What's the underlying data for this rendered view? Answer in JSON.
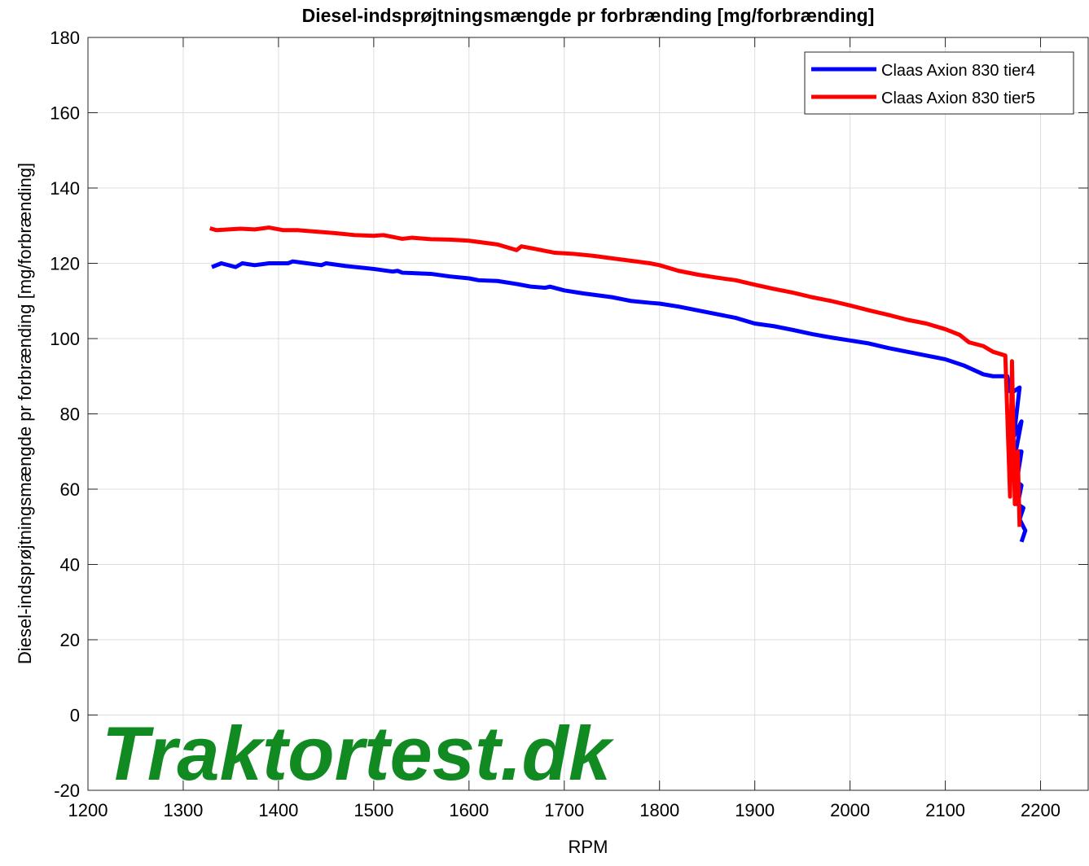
{
  "chart_data": {
    "type": "line",
    "title": "Diesel-indsprøjtningsmængde pr forbrænding [mg/forbrænding]",
    "xlabel": "RPM",
    "ylabel": "Diesel-indsprøjtningsmængde pr forbrænding [mg/forbrænding]",
    "watermark": "Traktortest.dk",
    "xlim": [
      1200,
      2250
    ],
    "ylim": [
      -20,
      180
    ],
    "xticks": [
      1200,
      1300,
      1400,
      1500,
      1600,
      1700,
      1800,
      1900,
      2000,
      2100,
      2200
    ],
    "yticks": [
      -20,
      0,
      20,
      40,
      60,
      80,
      100,
      120,
      140,
      160,
      180
    ],
    "grid": true,
    "legend": "upper right",
    "series": [
      {
        "name": "Claas Axion 830 tier4",
        "color": "#0000ff",
        "x": [
          1330,
          1340,
          1355,
          1362,
          1375,
          1390,
          1410,
          1415,
          1430,
          1445,
          1450,
          1470,
          1500,
          1520,
          1525,
          1530,
          1560,
          1580,
          1600,
          1610,
          1630,
          1650,
          1665,
          1680,
          1685,
          1700,
          1720,
          1750,
          1770,
          1790,
          1800,
          1820,
          1840,
          1860,
          1880,
          1900,
          1920,
          1940,
          1960,
          1980,
          2000,
          2020,
          2040,
          2060,
          2080,
          2100,
          2120,
          2140,
          2150,
          2160,
          2165,
          2168,
          2172,
          2178,
          2172,
          2180,
          2174,
          2180,
          2175,
          2180,
          2176,
          2182,
          2178,
          2184,
          2180
        ],
        "values": [
          119,
          120,
          119,
          120,
          119.5,
          120,
          120,
          120.5,
          120,
          119.5,
          120,
          119.3,
          118.5,
          117.8,
          118,
          117.5,
          117.2,
          116.5,
          116,
          115.5,
          115.3,
          114.5,
          113.8,
          113.5,
          113.8,
          112.8,
          112,
          111,
          110,
          109.5,
          109.3,
          108.5,
          107.5,
          106.5,
          105.5,
          104,
          103.3,
          102.3,
          101.2,
          100.3,
          99.5,
          98.7,
          97.5,
          96.5,
          95.5,
          94.5,
          92.8,
          90.5,
          90,
          90,
          90,
          86,
          86,
          87,
          74,
          78,
          70,
          70,
          62,
          61,
          56,
          55,
          52,
          49,
          46
        ]
      },
      {
        "name": "Claas Axion 830 tier5",
        "color": "#ff0000",
        "x": [
          1328,
          1335,
          1360,
          1375,
          1390,
          1405,
          1420,
          1440,
          1460,
          1480,
          1500,
          1510,
          1530,
          1540,
          1560,
          1580,
          1600,
          1630,
          1650,
          1655,
          1670,
          1690,
          1710,
          1730,
          1760,
          1790,
          1800,
          1820,
          1840,
          1860,
          1880,
          1900,
          1920,
          1940,
          1960,
          1980,
          2000,
          2020,
          2040,
          2060,
          2080,
          2100,
          2115,
          2125,
          2140,
          2150,
          2163,
          2168,
          2170,
          2173,
          2176,
          2178
        ],
        "values": [
          129.3,
          128.8,
          129.2,
          129,
          129.5,
          128.8,
          128.8,
          128.4,
          128,
          127.5,
          127.3,
          127.5,
          126.5,
          126.8,
          126.4,
          126.3,
          126,
          125,
          123.5,
          124.5,
          123.8,
          122.8,
          122.5,
          122,
          121,
          120,
          119.5,
          118,
          117,
          116.2,
          115.5,
          114.3,
          113.2,
          112.2,
          111,
          110,
          108.8,
          107.5,
          106.3,
          105,
          104,
          102.5,
          101,
          99,
          98,
          96.5,
          95.5,
          58,
          94,
          56,
          70,
          50
        ]
      }
    ]
  }
}
